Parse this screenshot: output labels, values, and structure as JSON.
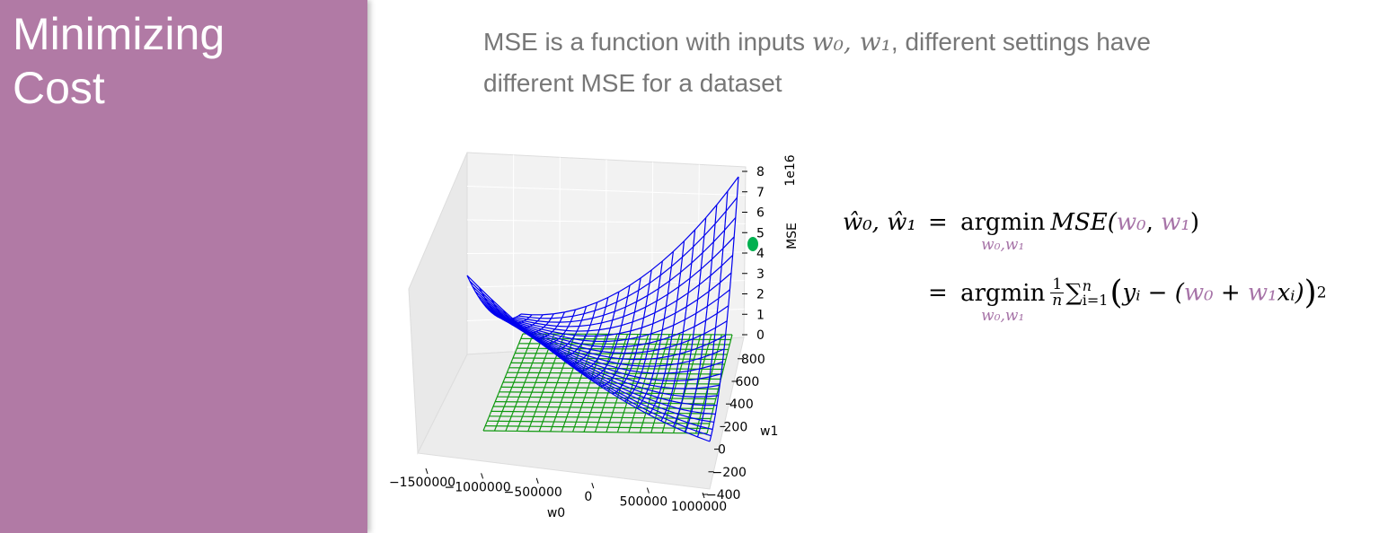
{
  "sidebar": {
    "title": "Minimizing Cost"
  },
  "intro": [
    "MSE is a function with inputs ",
    "w₀, w₁",
    ", different settings have different MSE for a dataset"
  ],
  "figure": {
    "z_label": "MSE",
    "z_scale": "1e16",
    "z_ticks": [
      "0",
      "1",
      "2",
      "3",
      "4",
      "5",
      "6",
      "7",
      "8"
    ],
    "y_label": "w1",
    "y_ticks": [
      "−400",
      "−200",
      "0",
      "200",
      "400",
      "600",
      "800"
    ],
    "x_label": "w0",
    "x_ticks": [
      "−1500000",
      "−1000000",
      "−500000",
      "0",
      "500000",
      "1000000"
    ]
  },
  "formula": {
    "line1": {
      "lhs": "ŵ₀, ŵ₁",
      "eq": "=",
      "op": "argmin",
      "op_sub": "w₀,w₁",
      "fn": "MSE(",
      "arg1": "w₀",
      "sep": ", ",
      "arg2": "w₁",
      "close": ")"
    },
    "line2": {
      "eq": "=",
      "op": "argmin",
      "op_sub": "w₀,w₁",
      "frac_num": "1",
      "frac_den": "n",
      "sum": "∑",
      "sum_sup": "n",
      "sum_sub": "i=1",
      "open": "(",
      "term": "yᵢ − (",
      "arg1": "w₀",
      "plus": " + ",
      "arg2": "w₁",
      "tail": "xᵢ)",
      "close": ")",
      "power": "2"
    }
  }
}
